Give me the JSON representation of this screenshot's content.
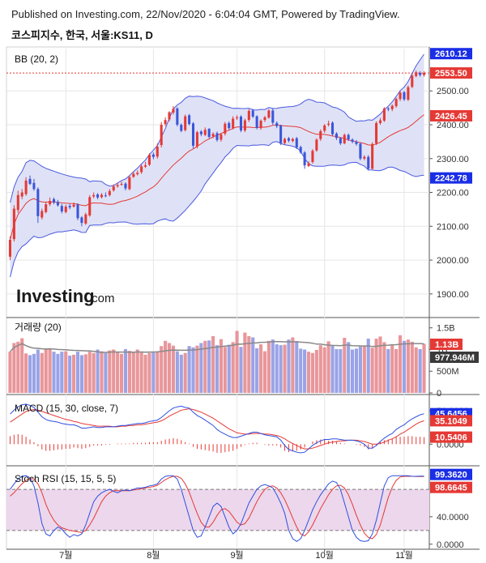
{
  "header": {
    "published": "Published on Investing.com, 22/Nov/2020 - 6:04:04 GMT, Powered by TradingView.",
    "symbol": "코스피지수, 한국, 서울:KS11, D"
  },
  "watermark": {
    "brand": "Investing",
    "suffix": ".com"
  },
  "colors": {
    "up": "#e53935",
    "down": "#3b55d9",
    "bb_fill": "#dfe2f6",
    "bb_band": "#4a5ae0",
    "bb_mid": "#e53935",
    "vol_up": "#e8969a",
    "vol_down": "#9aa3e6",
    "vol_ma": "#888888",
    "macd": "#2f4fe0",
    "signal": "#e53935",
    "stoch_k": "#2f4fe0",
    "stoch_d": "#e53935",
    "stoch_zone": "#ecd7ec",
    "grid": "#e6e6e6",
    "axis": "#555555"
  },
  "chart_data": [
    {
      "type": "candlestick",
      "panel": "price",
      "title": "BB (20, 2)",
      "ylim": [
        1835,
        2625
      ],
      "price_ticks": [
        "1900.00",
        "2000.00",
        "2100.00",
        "2200.00",
        "2300.00",
        "2400.00",
        "2500.00"
      ],
      "x_tick_labels": [
        "7월",
        "8월",
        "9월",
        "10월",
        "11월"
      ],
      "x_tick_index": [
        14,
        36,
        57,
        79,
        99
      ],
      "last_price_label": "2553.50",
      "bb_upper_label": "2610.12",
      "bb_mid_label": "2426.45",
      "bb_lower_label": "2242.78",
      "close": [
        2060,
        2152,
        2192,
        2200,
        2235,
        2225,
        2210,
        2130,
        2145,
        2165,
        2175,
        2170,
        2162,
        2144,
        2158,
        2156,
        2164,
        2124,
        2110,
        2135,
        2186,
        2192,
        2185,
        2193,
        2190,
        2204,
        2218,
        2222,
        2225,
        2212,
        2245,
        2255,
        2258,
        2277,
        2280,
        2311,
        2305,
        2335,
        2400,
        2414,
        2437,
        2447,
        2400,
        2382,
        2425,
        2402,
        2338,
        2378,
        2372,
        2385,
        2364,
        2373,
        2355,
        2371,
        2403,
        2390,
        2418,
        2422,
        2383,
        2413,
        2441,
        2424,
        2391,
        2412,
        2422,
        2442,
        2406,
        2396,
        2346,
        2358,
        2353,
        2358,
        2333,
        2318,
        2280,
        2286,
        2323,
        2356,
        2381,
        2398,
        2403,
        2372,
        2361,
        2345,
        2370,
        2357,
        2350,
        2343,
        2300,
        2305,
        2270,
        2343,
        2405,
        2413,
        2448,
        2447,
        2456,
        2476,
        2495,
        2475,
        2511,
        2545,
        2555,
        2547,
        2553
      ],
      "open": [
        2010,
        2062,
        2148,
        2188,
        2195,
        2240,
        2228,
        2210,
        2126,
        2142,
        2165,
        2180,
        2172,
        2160,
        2142,
        2160,
        2158,
        2165,
        2126,
        2108,
        2132,
        2188,
        2194,
        2186,
        2191,
        2192,
        2206,
        2218,
        2224,
        2226,
        2210,
        2246,
        2254,
        2260,
        2276,
        2282,
        2312,
        2306,
        2340,
        2402,
        2416,
        2436,
        2448,
        2400,
        2384,
        2428,
        2404,
        2336,
        2380,
        2370,
        2388,
        2366,
        2375,
        2356,
        2374,
        2405,
        2390,
        2420,
        2424,
        2383,
        2414,
        2442,
        2425,
        2390,
        2414,
        2421,
        2442,
        2405,
        2398,
        2346,
        2360,
        2352,
        2360,
        2334,
        2318,
        2278,
        2290,
        2324,
        2358,
        2382,
        2400,
        2406,
        2374,
        2360,
        2345,
        2370,
        2356,
        2350,
        2344,
        2300,
        2305,
        2270,
        2345,
        2405,
        2412,
        2448,
        2446,
        2455,
        2476,
        2496,
        2474,
        2512,
        2544,
        2553,
        2547
      ],
      "high": [
        2070,
        2162,
        2205,
        2210,
        2245,
        2250,
        2240,
        2215,
        2152,
        2172,
        2185,
        2185,
        2178,
        2166,
        2164,
        2166,
        2170,
        2168,
        2130,
        2140,
        2192,
        2200,
        2198,
        2198,
        2200,
        2210,
        2224,
        2228,
        2232,
        2230,
        2250,
        2262,
        2265,
        2282,
        2290,
        2316,
        2318,
        2345,
        2408,
        2422,
        2440,
        2455,
        2452,
        2404,
        2430,
        2432,
        2408,
        2382,
        2384,
        2392,
        2390,
        2378,
        2380,
        2376,
        2408,
        2410,
        2425,
        2428,
        2428,
        2418,
        2446,
        2447,
        2428,
        2416,
        2426,
        2446,
        2448,
        2410,
        2400,
        2362,
        2364,
        2362,
        2364,
        2338,
        2322,
        2292,
        2328,
        2360,
        2386,
        2402,
        2412,
        2410,
        2378,
        2364,
        2374,
        2374,
        2360,
        2355,
        2348,
        2310,
        2310,
        2348,
        2410,
        2420,
        2452,
        2452,
        2460,
        2480,
        2500,
        2500,
        2516,
        2550,
        2560,
        2558,
        2558
      ],
      "low": [
        2000,
        2055,
        2140,
        2180,
        2190,
        2222,
        2205,
        2110,
        2120,
        2138,
        2160,
        2165,
        2158,
        2138,
        2138,
        2150,
        2155,
        2118,
        2100,
        2104,
        2128,
        2183,
        2180,
        2182,
        2186,
        2188,
        2202,
        2214,
        2220,
        2206,
        2206,
        2243,
        2250,
        2255,
        2272,
        2278,
        2298,
        2300,
        2333,
        2396,
        2410,
        2430,
        2395,
        2378,
        2380,
        2398,
        2330,
        2330,
        2366,
        2366,
        2360,
        2360,
        2350,
        2350,
        2368,
        2385,
        2386,
        2414,
        2378,
        2378,
        2408,
        2420,
        2386,
        2385,
        2408,
        2418,
        2400,
        2390,
        2340,
        2342,
        2348,
        2348,
        2328,
        2314,
        2270,
        2275,
        2285,
        2320,
        2352,
        2376,
        2395,
        2368,
        2355,
        2340,
        2342,
        2352,
        2345,
        2338,
        2295,
        2295,
        2265,
        2268,
        2340,
        2400,
        2408,
        2440,
        2440,
        2450,
        2470,
        2470,
        2470,
        2508,
        2540,
        2542,
        2542
      ]
    },
    {
      "type": "bar",
      "panel": "volume",
      "title": "거래량 (20)",
      "ylim": [
        0,
        1700000000
      ],
      "tick_labels": [
        "1.5B",
        "1B",
        "500M",
        "0"
      ],
      "tick_values": [
        1500000000,
        1000000000,
        500000000,
        0
      ],
      "last_volume_label": "1.13B",
      "ma_label": "977.946M",
      "values": [
        950,
        1150,
        1180,
        1260,
        910,
        870,
        900,
        1000,
        920,
        1000,
        1030,
        950,
        900,
        950,
        960,
        860,
        880,
        950,
        870,
        890,
        950,
        920,
        1000,
        960,
        920,
        980,
        1000,
        950,
        900,
        1010,
        970,
        940,
        1000,
        940,
        880,
        920,
        930,
        960,
        1080,
        1200,
        1150,
        1090,
        960,
        880,
        920,
        1080,
        1050,
        1090,
        1150,
        1200,
        1210,
        1310,
        1100,
        1240,
        1060,
        1110,
        1170,
        1430,
        1060,
        1390,
        1310,
        1280,
        1030,
        1120,
        960,
        1200,
        1230,
        1120,
        1100,
        1110,
        1230,
        1280,
        1180,
        1020,
        1000,
        950,
        920,
        990,
        1100,
        1050,
        1190,
        1100,
        1010,
        1010,
        1270,
        1170,
        1000,
        1020,
        1070,
        1080,
        1250,
        1040,
        1250,
        1300,
        1170,
        1010,
        1120,
        1010,
        1330,
        1200,
        1230,
        1180,
        1050,
        1010,
        1130
      ]
    },
    {
      "type": "line",
      "panel": "macd",
      "title": "MACD (15, 30, close, 7)",
      "ylim": [
        -30,
        72
      ],
      "tick_labels": [
        "50.0000",
        "0.0000"
      ],
      "tick_values": [
        50,
        0
      ],
      "series": [
        {
          "name": "MACD",
          "values": [
            45,
            51,
            56,
            59,
            60,
            58,
            55,
            48,
            41,
            37,
            35,
            34,
            33,
            31,
            30,
            29,
            29,
            27,
            24,
            24,
            25,
            26,
            25,
            25,
            26,
            26,
            26,
            27,
            28,
            28,
            29,
            30,
            31,
            31,
            32,
            34,
            35,
            36,
            40,
            45,
            50,
            54,
            56,
            57,
            55,
            54,
            48,
            43,
            40,
            36,
            32,
            28,
            22,
            18,
            15,
            12,
            10,
            10,
            12,
            14,
            16,
            18,
            18,
            16,
            14,
            13,
            12,
            11,
            6,
            -2,
            -8,
            -10,
            -12,
            -13,
            -12,
            -7,
            -2,
            2,
            5,
            7,
            7,
            8,
            8,
            7,
            6,
            6,
            6,
            5,
            3,
            0,
            -6,
            -6,
            -2,
            4,
            9,
            13,
            16,
            22,
            26,
            29,
            34,
            38,
            41,
            44,
            45.6456
          ]
        },
        {
          "name": "Signal",
          "values": [
            33,
            37,
            41,
            45,
            49,
            51,
            52,
            51,
            49,
            47,
            45,
            43,
            41,
            39,
            37,
            36,
            34,
            33,
            31,
            30,
            29,
            28,
            27,
            27,
            27,
            27,
            26,
            26,
            27,
            27,
            28,
            28,
            29,
            29,
            30,
            31,
            32,
            33,
            35,
            38,
            42,
            45,
            48,
            51,
            52,
            53,
            52,
            50,
            48,
            45,
            42,
            39,
            35,
            31,
            27,
            23,
            20,
            17,
            16,
            15,
            15,
            16,
            16,
            16,
            15,
            15,
            14,
            13,
            11,
            8,
            4,
            1,
            -2,
            -5,
            -7,
            -7,
            -6,
            -4,
            -2,
            0,
            2,
            3,
            4,
            5,
            5,
            6,
            6,
            6,
            5,
            4,
            2,
            0,
            0,
            1,
            3,
            6,
            8,
            11,
            15,
            18,
            22,
            26,
            30,
            33,
            35.1049
          ]
        }
      ],
      "histogram": [
        12,
        14,
        15,
        14,
        11,
        7,
        3,
        -3,
        -8,
        -10,
        -10,
        -9,
        -8,
        -8,
        -7,
        -7,
        -5,
        -6,
        -7,
        -6,
        -4,
        -2,
        -2,
        -2,
        -1,
        -1,
        0,
        1,
        1,
        1,
        1,
        2,
        2,
        2,
        2,
        3,
        3,
        3,
        5,
        7,
        8,
        9,
        8,
        6,
        3,
        1,
        -4,
        -7,
        -8,
        -9,
        -10,
        -11,
        -13,
        -13,
        -12,
        -11,
        -10,
        -7,
        -4,
        -1,
        1,
        2,
        2,
        0,
        -1,
        -2,
        -2,
        -2,
        -5,
        -10,
        -12,
        -11,
        -10,
        -8,
        -5,
        0,
        4,
        6,
        7,
        7,
        5,
        5,
        4,
        2,
        1,
        0,
        0,
        -1,
        -2,
        -4,
        -8,
        -6,
        -2,
        3,
        6,
        7,
        8,
        11,
        11,
        11,
        12,
        12,
        11,
        11,
        10.5406
      ]
    },
    {
      "type": "line",
      "panel": "stoch_rsi",
      "title": "Stoch RSI (15, 15, 5, 5)",
      "ylim": [
        -5,
        112
      ],
      "tick_labels": [
        "40.0000",
        "0.0000"
      ],
      "tick_values": [
        40,
        0
      ],
      "zone": [
        20,
        80
      ],
      "series": [
        {
          "name": "K",
          "values": [
            80,
            88,
            95,
            99,
            100,
            97,
            85,
            60,
            30,
            15,
            12,
            20,
            25,
            22,
            15,
            10,
            14,
            12,
            15,
            28,
            45,
            62,
            70,
            75,
            78,
            80,
            77,
            75,
            78,
            79,
            78,
            80,
            82,
            82,
            83,
            85,
            86,
            88,
            95,
            99,
            100,
            100,
            95,
            80,
            60,
            40,
            20,
            10,
            12,
            25,
            40,
            55,
            60,
            55,
            40,
            25,
            15,
            20,
            30,
            45,
            60,
            70,
            80,
            85,
            87,
            85,
            82,
            72,
            60,
            45,
            20,
            8,
            4,
            8,
            20,
            35,
            50,
            62,
            72,
            80,
            88,
            92,
            90,
            80,
            60,
            40,
            20,
            10,
            5,
            4,
            5,
            15,
            35,
            60,
            85,
            97,
            100,
            100,
            100,
            100,
            100,
            99,
            99,
            99.2,
            99.362
          ]
        },
        {
          "name": "D",
          "values": [
            70,
            75,
            82,
            88,
            93,
            96,
            95,
            88,
            75,
            58,
            45,
            35,
            28,
            24,
            22,
            20,
            19,
            18,
            17,
            20,
            28,
            38,
            50,
            62,
            70,
            75,
            78,
            78,
            78,
            78,
            78,
            79,
            80,
            81,
            82,
            83,
            84,
            86,
            90,
            94,
            97,
            99,
            99,
            96,
            88,
            76,
            60,
            45,
            32,
            25,
            25,
            32,
            42,
            50,
            52,
            48,
            40,
            32,
            28,
            30,
            38,
            50,
            62,
            72,
            80,
            84,
            85,
            82,
            75,
            65,
            52,
            38,
            25,
            15,
            12,
            18,
            28,
            40,
            52,
            62,
            72,
            80,
            85,
            86,
            82,
            72,
            58,
            42,
            28,
            16,
            10,
            8,
            14,
            28,
            48,
            68,
            83,
            93,
            98,
            99,
            99,
            99,
            98.8,
            98.7,
            98.6645
          ]
        }
      ]
    }
  ]
}
